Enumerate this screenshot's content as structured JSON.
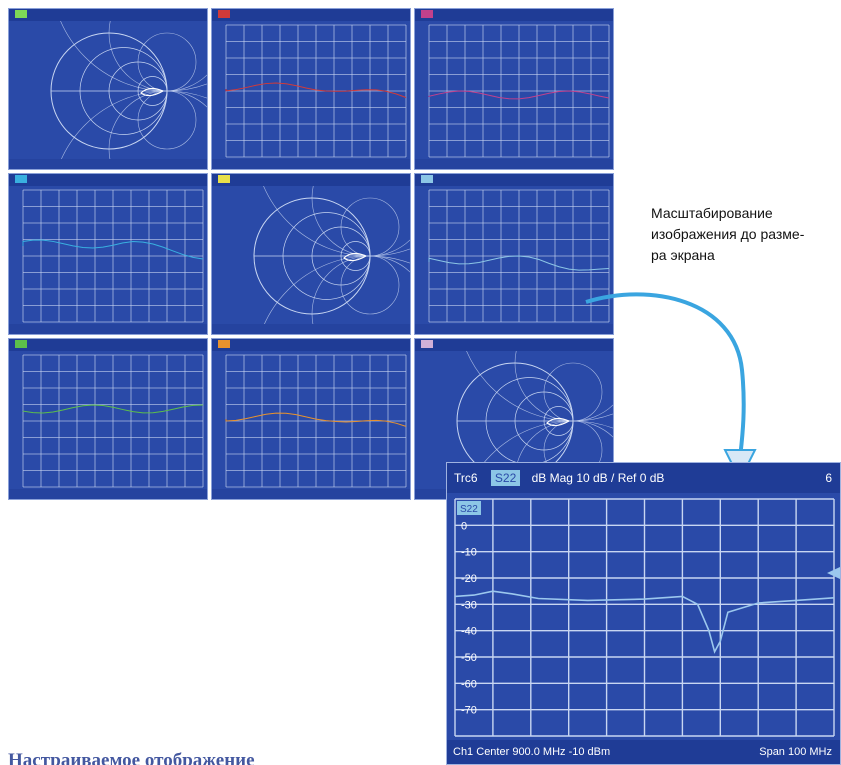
{
  "colors": {
    "screen_bg": "#2a4aa8",
    "grid": "#c8d6f2",
    "trace": "#9cc8ee",
    "arrow": "#3aa5e0",
    "title": "#4458a0"
  },
  "thumbnails": [
    {
      "type": "smith",
      "tag_color": "#7ed957"
    },
    {
      "type": "grid",
      "tag_color": "#d13a3a"
    },
    {
      "type": "grid",
      "tag_color": "#c2418c"
    },
    {
      "type": "grid",
      "tag_color": "#39b0e0"
    },
    {
      "type": "smith",
      "tag_color": "#e8e04a"
    },
    {
      "type": "grid",
      "tag_color": "#8cc6e6"
    },
    {
      "type": "grid",
      "tag_color": "#5cbf4a"
    },
    {
      "type": "grid",
      "tag_color": "#e8922e"
    },
    {
      "type": "smith",
      "tag_color": "#d0b0d8"
    }
  ],
  "enlarged": {
    "trace": "Trc6",
    "channel_tag": "S22",
    "format": "dB Mag",
    "scale": "10 dB /",
    "ref": "Ref 0 dB",
    "corner_num": "6",
    "marker_tag": "S22",
    "y_ticks": [
      "0",
      "-10",
      "-20",
      "-30",
      "-40",
      "-50",
      "-60",
      "-70"
    ],
    "footer_channel": "Ch1",
    "footer_center": "Center 900.0 MHz -10 dBm",
    "footer_span": "Span 100 MHz"
  },
  "caption_lines": [
    "Масштабирование",
    "изображения до разме-",
    "ра экрана"
  ],
  "page_title": "Настраиваемое отображение"
}
